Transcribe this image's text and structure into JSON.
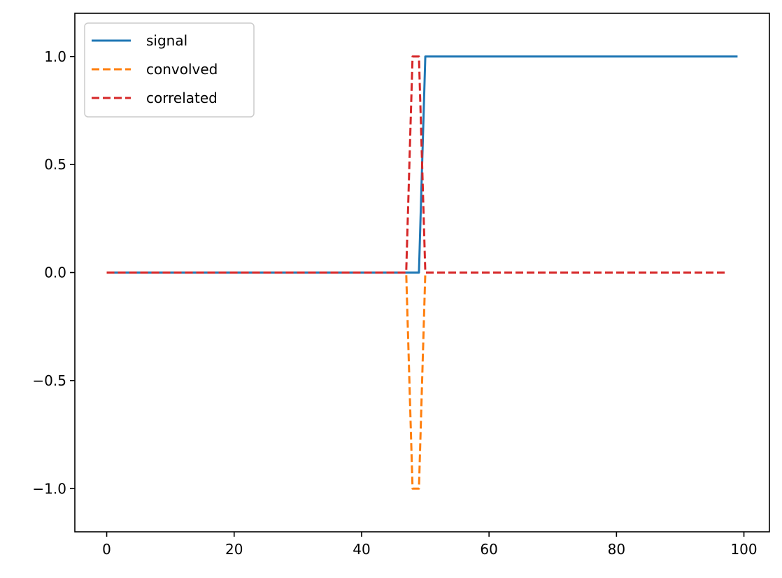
{
  "chart_data": {
    "type": "line",
    "title": "",
    "xlabel": "",
    "ylabel": "",
    "xlim": [
      -5,
      104
    ],
    "ylim": [
      -1.2,
      1.2
    ],
    "xticks": [
      0,
      20,
      40,
      60,
      80,
      100
    ],
    "xtick_labels": [
      "0",
      "20",
      "40",
      "60",
      "80",
      "100"
    ],
    "yticks": [
      -1.0,
      -0.5,
      0.0,
      0.5,
      1.0
    ],
    "ytick_labels": [
      "−1.0",
      "−0.5",
      "0.0",
      "0.5",
      "1.0"
    ],
    "grid": false,
    "legend_position": "top-left",
    "series": [
      {
        "name": "signal",
        "color": "#1f77b4",
        "style": "solid",
        "x": [
          0,
          49,
          50,
          99
        ],
        "y": [
          0,
          0,
          1,
          1
        ]
      },
      {
        "name": "convolved",
        "color": "#ff7f0e",
        "style": "dashed",
        "x": [
          0,
          47,
          48,
          49,
          50,
          97
        ],
        "y": [
          0,
          0,
          -1,
          -1,
          0,
          0
        ]
      },
      {
        "name": "correlated",
        "color": "#d62728",
        "style": "dashed",
        "x": [
          0,
          47,
          48,
          49,
          50,
          97
        ],
        "y": [
          0,
          0,
          1,
          1,
          0,
          0
        ]
      }
    ]
  }
}
